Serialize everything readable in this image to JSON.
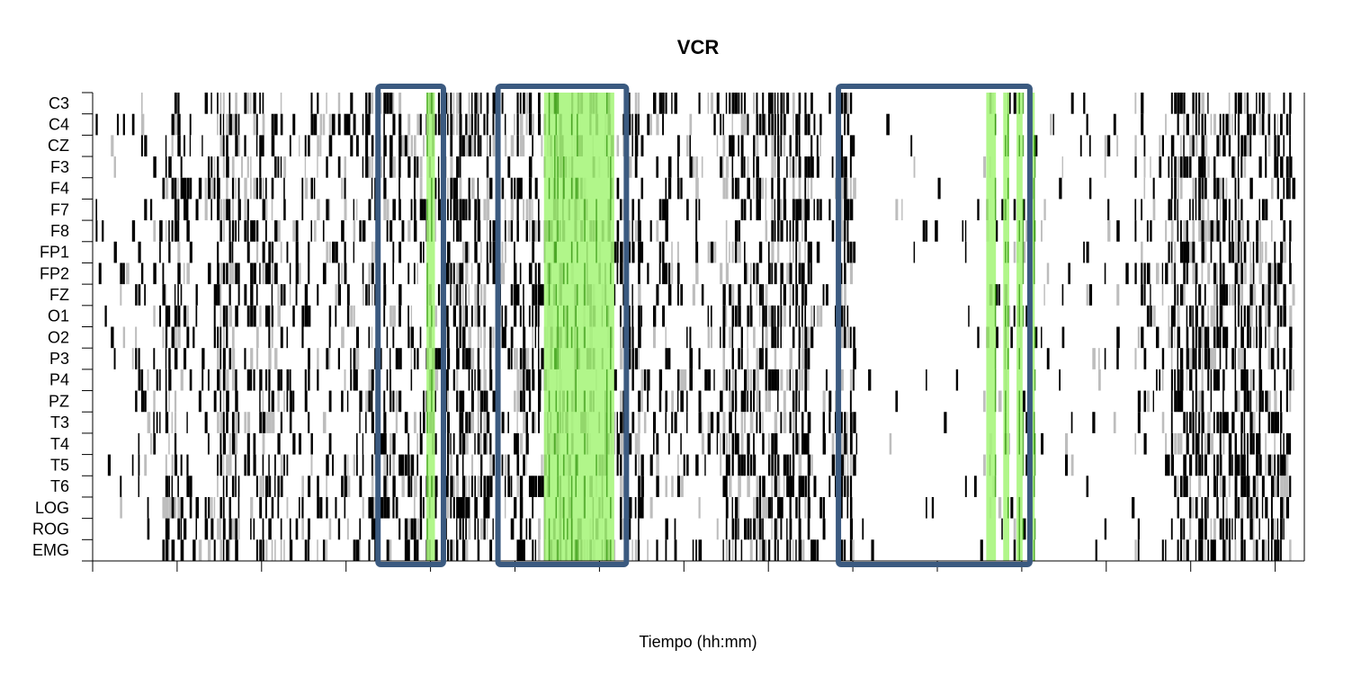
{
  "chart_data": {
    "type": "heatmap",
    "title": "VCR",
    "xlabel": "Tiempo (hh:mm)",
    "ylabel": "",
    "channels": [
      "C3",
      "C4",
      "CZ",
      "F3",
      "F4",
      "F7",
      "F8",
      "FP1",
      "FP2",
      "FZ",
      "O1",
      "O2",
      "P3",
      "P4",
      "PZ",
      "T3",
      "T4",
      "T5",
      "T6",
      "LOG",
      "ROG",
      "EMG"
    ],
    "x_range": [
      0,
      1
    ],
    "x_tick_count": 15,
    "x_tick_labels_visible": false,
    "cell_colors": [
      "#000000",
      "#bdbdbd",
      "#ffffff"
    ],
    "highlight_color": "#a6f57a",
    "box_color": "#3b5a80",
    "boxes": [
      {
        "x0": 0.2355,
        "x1": 0.2895
      },
      {
        "x0": 0.3345,
        "x1": 0.4405
      },
      {
        "x0": 0.6155,
        "x1": 0.7735
      }
    ],
    "highlights": [
      {
        "x0": 0.2755,
        "x1": 0.2825
      },
      {
        "x0": 0.3725,
        "x1": 0.4305
      },
      {
        "x0": 0.7375,
        "x1": 0.7455
      },
      {
        "x0": 0.7515,
        "x1": 0.7565
      },
      {
        "x0": 0.7625,
        "x1": 0.7675
      },
      {
        "x0": 0.7745,
        "x1": 0.7775
      }
    ],
    "activity_profile": [
      {
        "x0": 0.0,
        "x1": 0.03,
        "d": 0.08
      },
      {
        "x0": 0.03,
        "x1": 0.06,
        "d": 0.18
      },
      {
        "x0": 0.06,
        "x1": 0.075,
        "d": 0.55
      },
      {
        "x0": 0.075,
        "x1": 0.1,
        "d": 0.22
      },
      {
        "x0": 0.1,
        "x1": 0.16,
        "d": 0.55
      },
      {
        "x0": 0.16,
        "x1": 0.215,
        "d": 0.28
      },
      {
        "x0": 0.215,
        "x1": 0.25,
        "d": 0.4
      },
      {
        "x0": 0.25,
        "x1": 0.29,
        "d": 0.38
      },
      {
        "x0": 0.29,
        "x1": 0.33,
        "d": 0.62
      },
      {
        "x0": 0.33,
        "x1": 0.35,
        "d": 0.32
      },
      {
        "x0": 0.35,
        "x1": 0.375,
        "d": 0.55
      },
      {
        "x0": 0.375,
        "x1": 0.43,
        "d": 0.42
      },
      {
        "x0": 0.43,
        "x1": 0.455,
        "d": 0.5
      },
      {
        "x0": 0.455,
        "x1": 0.52,
        "d": 0.25
      },
      {
        "x0": 0.52,
        "x1": 0.595,
        "d": 0.65
      },
      {
        "x0": 0.595,
        "x1": 0.615,
        "d": 0.18
      },
      {
        "x0": 0.615,
        "x1": 0.63,
        "d": 0.55
      },
      {
        "x0": 0.63,
        "x1": 0.72,
        "d": 0.03
      },
      {
        "x0": 0.72,
        "x1": 0.78,
        "d": 0.14
      },
      {
        "x0": 0.78,
        "x1": 0.86,
        "d": 0.06
      },
      {
        "x0": 0.86,
        "x1": 0.89,
        "d": 0.25
      },
      {
        "x0": 0.89,
        "x1": 0.99,
        "d": 0.62
      },
      {
        "x0": 0.99,
        "x1": 1.0,
        "d": 0.05
      }
    ]
  }
}
